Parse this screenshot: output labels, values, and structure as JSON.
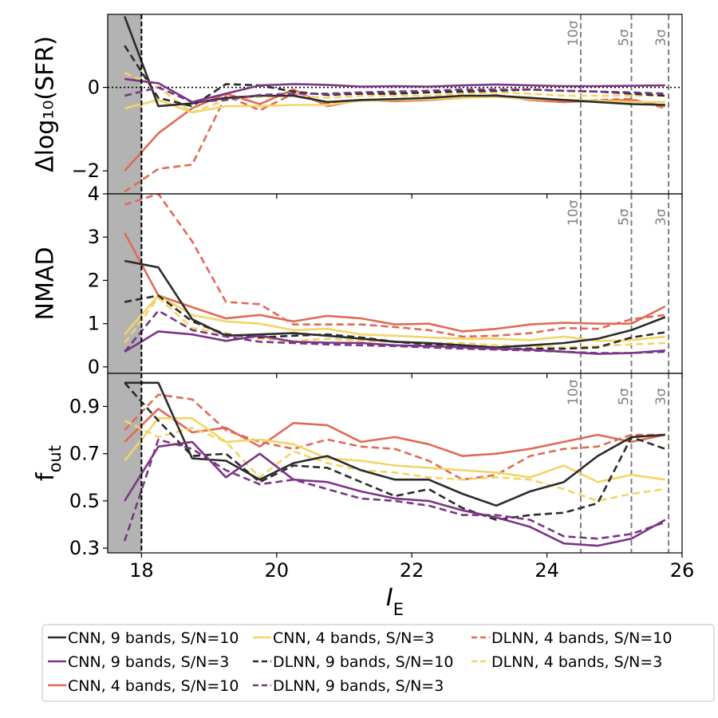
{
  "chart_data": {
    "type": "line",
    "x_range": [
      17.5,
      26
    ],
    "xlabel": "I",
    "xlabel_sub": "E",
    "x_ticks": [
      18,
      20,
      22,
      24,
      26
    ],
    "x_tick_labels": [
      "18",
      "20",
      "22",
      "24",
      "26"
    ],
    "shaded_region": [
      17.5,
      18
    ],
    "vertical_line": 18,
    "sigma_lines": [
      {
        "x": 24.5,
        "label": "10σ"
      },
      {
        "x": 25.25,
        "label": "5σ"
      },
      {
        "x": 25.8,
        "label": "3σ"
      }
    ],
    "x": [
      17.75,
      18.25,
      18.75,
      19.25,
      19.75,
      20.25,
      20.75,
      21.25,
      21.75,
      22.25,
      22.75,
      23.25,
      23.75,
      24.25,
      24.75,
      25.25,
      25.75
    ],
    "styles": [
      {
        "name": "CNN, 9 bands, S/N=10",
        "color": "#2b2b2b",
        "dash": "solid"
      },
      {
        "name": "CNN, 9 bands, S/N=3",
        "color": "#7b3585",
        "dash": "solid"
      },
      {
        "name": "CNN, 4 bands, S/N=10",
        "color": "#e06b55",
        "dash": "solid"
      },
      {
        "name": "CNN, 4 bands, S/N=3",
        "color": "#f2d567",
        "dash": "solid"
      },
      {
        "name": "DLNN, 9 bands, S/N=10",
        "color": "#2b2b2b",
        "dash": "dashed"
      },
      {
        "name": "DLNN, 9 bands, S/N=3",
        "color": "#7b3585",
        "dash": "dashed"
      },
      {
        "name": "DLNN, 4 bands, S/N=10",
        "color": "#e06b55",
        "dash": "dashed"
      },
      {
        "name": "DLNN, 4 bands, S/N=3",
        "color": "#f2d567",
        "dash": "dashed"
      }
    ],
    "panels": [
      {
        "ylabel": "Δlog₁₀(SFR)",
        "ylim": [
          -2.55,
          1.75
        ],
        "y_ticks": [
          -2,
          0
        ],
        "y_tick_labels": [
          "−2",
          "0"
        ],
        "zero_line": true,
        "series": [
          {
            "name": "CNN, 9 bands, S/N=10",
            "values": [
              1.7,
              -0.45,
              -0.38,
              -0.25,
              -0.2,
              -0.2,
              -0.35,
              -0.3,
              -0.28,
              -0.25,
              -0.2,
              -0.2,
              -0.25,
              -0.3,
              -0.35,
              -0.4,
              -0.42
            ]
          },
          {
            "name": "CNN, 9 bands, S/N=3",
            "values": [
              0.2,
              0.1,
              -0.35,
              -0.15,
              0.05,
              0.08,
              0.06,
              0.02,
              0.03,
              0.02,
              0.05,
              0.07,
              0.05,
              0.03,
              0.03,
              0.04,
              0.05
            ]
          },
          {
            "name": "CNN, 4 bands, S/N=10",
            "values": [
              -2.0,
              -1.1,
              -0.5,
              -0.15,
              -0.4,
              -0.05,
              -0.45,
              -0.3,
              -0.33,
              -0.3,
              -0.25,
              -0.18,
              -0.3,
              -0.35,
              -0.32,
              -0.3,
              -0.45
            ]
          },
          {
            "name": "CNN, 4 bands, S/N=3",
            "values": [
              -0.5,
              -0.3,
              -0.6,
              -0.45,
              -0.45,
              -0.42,
              -0.42,
              -0.32,
              -0.3,
              -0.28,
              -0.25,
              -0.22,
              -0.28,
              -0.3,
              -0.32,
              -0.35,
              -0.35
            ]
          },
          {
            "name": "DLNN, 9 bands, S/N=10",
            "values": [
              1.0,
              -0.25,
              -0.45,
              0.08,
              0.05,
              -0.1,
              -0.18,
              -0.15,
              -0.15,
              -0.12,
              -0.1,
              -0.08,
              -0.05,
              -0.08,
              -0.1,
              -0.15,
              -0.2
            ]
          },
          {
            "name": "DLNN, 9 bands, S/N=3",
            "values": [
              -0.2,
              0.0,
              -0.35,
              -0.3,
              -0.18,
              -0.15,
              -0.15,
              -0.12,
              -0.1,
              -0.08,
              -0.05,
              -0.05,
              -0.05,
              -0.08,
              -0.1,
              -0.12,
              -0.15
            ]
          },
          {
            "name": "DLNN, 4 bands, S/N=10",
            "values": [
              -2.5,
              -1.95,
              -1.85,
              -0.2,
              -0.55,
              -0.15,
              -0.4,
              -0.3,
              -0.3,
              -0.25,
              -0.25,
              -0.2,
              -0.3,
              -0.35,
              -0.3,
              -0.28,
              -0.5
            ]
          },
          {
            "name": "DLNN, 4 bands, S/N=3",
            "values": [
              0.35,
              0.0,
              -0.6,
              -0.3,
              -0.22,
              -0.2,
              -0.25,
              -0.2,
              -0.2,
              -0.2,
              -0.15,
              -0.12,
              -0.15,
              -0.2,
              -0.2,
              -0.2,
              -0.2
            ]
          }
        ]
      },
      {
        "ylabel": "NMAD",
        "ylim": [
          -0.15,
          4.0
        ],
        "y_ticks": [
          0,
          1,
          2,
          3,
          4
        ],
        "y_tick_labels": [
          "0",
          "1",
          "2",
          "3",
          "4"
        ],
        "zero_line": false,
        "series": [
          {
            "name": "CNN, 9 bands, S/N=10",
            "values": [
              2.45,
              2.3,
              1.1,
              0.72,
              0.75,
              0.78,
              0.72,
              0.65,
              0.58,
              0.55,
              0.5,
              0.45,
              0.5,
              0.55,
              0.65,
              0.85,
              1.15
            ]
          },
          {
            "name": "CNN, 9 bands, S/N=3",
            "values": [
              0.35,
              0.82,
              0.75,
              0.6,
              0.72,
              0.58,
              0.56,
              0.55,
              0.5,
              0.48,
              0.45,
              0.42,
              0.4,
              0.35,
              0.3,
              0.32,
              0.38
            ]
          },
          {
            "name": "CNN, 4 bands, S/N=10",
            "values": [
              3.1,
              1.65,
              1.38,
              1.12,
              1.2,
              1.05,
              1.18,
              1.12,
              0.98,
              1.0,
              0.82,
              0.88,
              0.98,
              1.02,
              1.0,
              1.0,
              1.4
            ]
          },
          {
            "name": "CNN, 4 bands, S/N=3",
            "values": [
              0.75,
              1.65,
              1.2,
              1.05,
              1.0,
              0.85,
              0.88,
              0.75,
              0.72,
              0.68,
              0.65,
              0.65,
              0.62,
              0.7,
              0.6,
              0.62,
              0.7
            ]
          },
          {
            "name": "DLNN, 9 bands, S/N=10",
            "values": [
              1.5,
              1.65,
              1.05,
              0.75,
              0.68,
              0.72,
              0.75,
              0.68,
              0.58,
              0.52,
              0.48,
              0.42,
              0.42,
              0.42,
              0.45,
              0.68,
              0.8
            ]
          },
          {
            "name": "DLNN, 9 bands, S/N=3",
            "values": [
              0.35,
              1.3,
              0.85,
              0.7,
              0.58,
              0.55,
              0.52,
              0.5,
              0.48,
              0.45,
              0.42,
              0.4,
              0.38,
              0.35,
              0.32,
              0.32,
              0.35
            ]
          },
          {
            "name": "DLNN, 4 bands, S/N=10",
            "values": [
              3.75,
              4.0,
              2.9,
              1.5,
              1.45,
              0.98,
              0.98,
              0.98,
              0.92,
              0.85,
              0.7,
              0.72,
              0.78,
              0.9,
              0.88,
              1.1,
              1.2
            ]
          },
          {
            "name": "DLNN, 4 bands, S/N=3",
            "values": [
              0.55,
              1.6,
              0.9,
              0.78,
              0.65,
              0.6,
              0.65,
              0.6,
              0.58,
              0.55,
              0.55,
              0.5,
              0.48,
              0.45,
              0.48,
              0.52,
              0.55
            ]
          }
        ]
      },
      {
        "ylabel": "f",
        "ylabel_sub": "out",
        "ylim": [
          0.28,
          1.04
        ],
        "y_ticks": [
          0.3,
          0.5,
          0.7,
          0.9
        ],
        "y_tick_labels": [
          "0.3",
          "0.5",
          "0.7",
          "0.9"
        ],
        "zero_line": false,
        "series": [
          {
            "name": "CNN, 9 bands, S/N=10",
            "values": [
              1.0,
              1.0,
              0.68,
              0.67,
              0.59,
              0.66,
              0.69,
              0.63,
              0.59,
              0.59,
              0.53,
              0.48,
              0.54,
              0.58,
              0.69,
              0.77,
              0.78
            ]
          },
          {
            "name": "CNN, 9 bands, S/N=3",
            "values": [
              0.5,
              0.73,
              0.75,
              0.6,
              0.7,
              0.59,
              0.58,
              0.54,
              0.51,
              0.5,
              0.46,
              0.43,
              0.39,
              0.32,
              0.31,
              0.34,
              0.42
            ]
          },
          {
            "name": "CNN, 4 bands, S/N=10",
            "values": [
              0.75,
              0.89,
              0.79,
              0.81,
              0.73,
              0.83,
              0.82,
              0.75,
              0.77,
              0.74,
              0.69,
              0.7,
              0.72,
              0.75,
              0.78,
              0.75,
              0.78
            ]
          },
          {
            "name": "CNN, 4 bands, S/N=3",
            "values": [
              0.67,
              0.85,
              0.85,
              0.75,
              0.76,
              0.74,
              0.68,
              0.67,
              0.65,
              0.64,
              0.63,
              0.62,
              0.6,
              0.65,
              0.58,
              0.61,
              0.59
            ]
          },
          {
            "name": "DLNN, 9 bands, S/N=10",
            "values": [
              1.0,
              0.84,
              0.69,
              0.7,
              0.58,
              0.65,
              0.64,
              0.58,
              0.52,
              0.55,
              0.47,
              0.42,
              0.44,
              0.45,
              0.49,
              0.77,
              0.72
            ]
          },
          {
            "name": "DLNN, 9 bands, S/N=3",
            "values": [
              0.33,
              0.76,
              0.72,
              0.63,
              0.57,
              0.59,
              0.55,
              0.51,
              0.5,
              0.48,
              0.44,
              0.44,
              0.42,
              0.35,
              0.34,
              0.36,
              0.41
            ]
          },
          {
            "name": "DLNN, 4 bands, S/N=10",
            "values": [
              0.8,
              0.95,
              0.93,
              0.8,
              0.75,
              0.72,
              0.76,
              0.73,
              0.72,
              0.67,
              0.59,
              0.61,
              0.69,
              0.72,
              0.73,
              0.78,
              0.78
            ]
          },
          {
            "name": "DLNN, 4 bands, S/N=3",
            "values": [
              0.84,
              0.77,
              0.81,
              0.75,
              0.6,
              0.71,
              0.66,
              0.63,
              0.62,
              0.6,
              0.59,
              0.6,
              0.59,
              0.55,
              0.5,
              0.53,
              0.55
            ]
          }
        ]
      }
    ]
  }
}
